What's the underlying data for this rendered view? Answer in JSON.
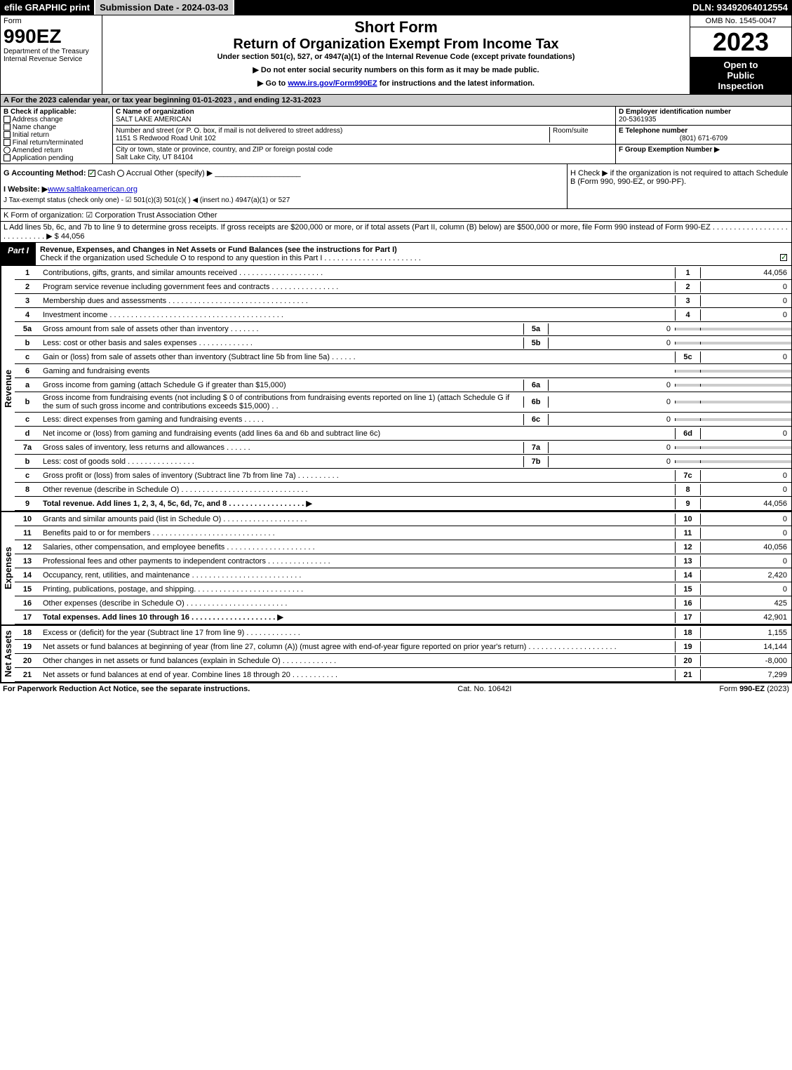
{
  "topbar": {
    "efile": "efile GRAPHIC print",
    "submission": "Submission Date - 2024-03-03",
    "dln": "DLN: 93492064012554"
  },
  "header": {
    "form_label": "Form",
    "form_num": "990EZ",
    "dept1": "Department of the Treasury",
    "dept2": "Internal Revenue Service",
    "title1": "Short Form",
    "title2": "Return of Organization Exempt From Income Tax",
    "subtitle": "Under section 501(c), 527, or 4947(a)(1) of the Internal Revenue Code (except private foundations)",
    "note1": "▶ Do not enter social security numbers on this form as it may be made public.",
    "note2_pre": "▶ Go to ",
    "note2_link": "www.irs.gov/Form990EZ",
    "note2_post": " for instructions and the latest information.",
    "omb": "OMB No. 1545-0047",
    "year": "2023",
    "open1": "Open to",
    "open2": "Public",
    "open3": "Inspection"
  },
  "section_a": "A  For the 2023 calendar year, or tax year beginning 01-01-2023  , and ending 12-31-2023",
  "col_b": {
    "title": "B  Check if applicable:",
    "opts": [
      "Address change",
      "Name change",
      "Initial return",
      "Final return/terminated",
      "Amended return",
      "Application pending"
    ]
  },
  "col_c": {
    "name_label": "C Name of organization",
    "name": "SALT LAKE AMERICAN",
    "addr_label": "Number and street (or P. O. box, if mail is not delivered to street address)",
    "room_label": "Room/suite",
    "addr": "1151 S Redwood Road Unit 102",
    "city_label": "City or town, state or province, country, and ZIP or foreign postal code",
    "city": "Salt Lake City, UT  84104"
  },
  "col_def": {
    "d_label": "D Employer identification number",
    "d_val": "20-5361935",
    "e_label": "E Telephone number",
    "e_val": "(801) 671-6709",
    "f_label": "F Group Exemption Number  ▶"
  },
  "g": {
    "label": "G Accounting Method:",
    "cash": "Cash",
    "accrual": "Accrual",
    "other": "Other (specify) ▶"
  },
  "h": "H  Check ▶      if the organization is not required to attach Schedule B (Form 990, 990-EZ, or 990-PF).",
  "i_label": "I Website: ▶",
  "i_val": "www.saltlakeamerican.org",
  "j": "J Tax-exempt status (check only one) -  ☑ 501(c)(3)   501(c)(  ) ◀ (insert no.)   4947(a)(1) or   527",
  "k": "K Form of organization:   ☑ Corporation    Trust    Association    Other",
  "l": "L Add lines 5b, 6c, and 7b to line 9 to determine gross receipts. If gross receipts are $200,000 or more, or if total assets (Part II, column (B) below) are $500,000 or more, file Form 990 instead of Form 990-EZ  . . . . . . . . . . . . . . . . . . . . . . . . . . . .  ▶ $ 44,056",
  "part1": {
    "tab": "Part I",
    "title": "Revenue, Expenses, and Changes in Net Assets or Fund Balances (see the instructions for Part I)",
    "check": "Check if the organization used Schedule O to respond to any question in this Part I . . . . . . . . . . . . . . . . . . . . . . ."
  },
  "revenue_label": "Revenue",
  "expenses_label": "Expenses",
  "netassets_label": "Net Assets",
  "lines": {
    "1": {
      "n": "1",
      "d": "Contributions, gifts, grants, and similar amounts received . . . . . . . . . . . . . . . . . . . .",
      "rn": "1",
      "rv": "44,056"
    },
    "2": {
      "n": "2",
      "d": "Program service revenue including government fees and contracts . . . . . . . . . . . . . . . .",
      "rn": "2",
      "rv": "0"
    },
    "3": {
      "n": "3",
      "d": "Membership dues and assessments . . . . . . . . . . . . . . . . . . . . . . . . . . . . . . . . .",
      "rn": "3",
      "rv": "0"
    },
    "4": {
      "n": "4",
      "d": "Investment income . . . . . . . . . . . . . . . . . . . . . . . . . . . . . . . . . . . . . . . . .",
      "rn": "4",
      "rv": "0"
    },
    "5a": {
      "n": "5a",
      "d": "Gross amount from sale of assets other than inventory  . . . . . . .",
      "in": "5a",
      "iv": "0"
    },
    "5b": {
      "n": "b",
      "d": "Less: cost or other basis and sales expenses . . . . . . . . . . . . .",
      "in": "5b",
      "iv": "0"
    },
    "5c": {
      "n": "c",
      "d": "Gain or (loss) from sale of assets other than inventory (Subtract line 5b from line 5a)  . . . . . .",
      "rn": "5c",
      "rv": "0"
    },
    "6": {
      "n": "6",
      "d": "Gaming and fundraising events"
    },
    "6a": {
      "n": "a",
      "d": "Gross income from gaming (attach Schedule G if greater than $15,000)",
      "in": "6a",
      "iv": "0"
    },
    "6b": {
      "n": "b",
      "d": "Gross income from fundraising events (not including $ 0            of contributions from fundraising events reported on line 1) (attach Schedule G if the sum of such gross income and contributions exceeds $15,000)    . .",
      "in": "6b",
      "iv": "0"
    },
    "6c": {
      "n": "c",
      "d": "Less: direct expenses from gaming and fundraising events  . . . . .",
      "in": "6c",
      "iv": "0"
    },
    "6d": {
      "n": "d",
      "d": "Net income or (loss) from gaming and fundraising events (add lines 6a and 6b and subtract line 6c)",
      "rn": "6d",
      "rv": "0"
    },
    "7a": {
      "n": "7a",
      "d": "Gross sales of inventory, less returns and allowances  . . . . . .",
      "in": "7a",
      "iv": "0"
    },
    "7b": {
      "n": "b",
      "d": "Less: cost of goods sold      . . . . . . . . . . . . . . . .",
      "in": "7b",
      "iv": "0"
    },
    "7c": {
      "n": "c",
      "d": "Gross profit or (loss) from sales of inventory (Subtract line 7b from line 7a)  . . . . . . . . . .",
      "rn": "7c",
      "rv": "0"
    },
    "8": {
      "n": "8",
      "d": "Other revenue (describe in Schedule O) . . . . . . . . . . . . . . . . . . . . . . . . . . . . . .",
      "rn": "8",
      "rv": "0"
    },
    "9": {
      "n": "9",
      "d": "Total revenue. Add lines 1, 2, 3, 4, 5c, 6d, 7c, and 8  . . . . . . . . . . . . . . . . . .  ▶",
      "rn": "9",
      "rv": "44,056",
      "bold": true
    },
    "10": {
      "n": "10",
      "d": "Grants and similar amounts paid (list in Schedule O) . . . . . . . . . . . . . . . . . . . .",
      "rn": "10",
      "rv": "0"
    },
    "11": {
      "n": "11",
      "d": "Benefits paid to or for members    . . . . . . . . . . . . . . . . . . . . . . . . . . . . .",
      "rn": "11",
      "rv": "0"
    },
    "12": {
      "n": "12",
      "d": "Salaries, other compensation, and employee benefits . . . . . . . . . . . . . . . . . . . . .",
      "rn": "12",
      "rv": "40,056"
    },
    "13": {
      "n": "13",
      "d": "Professional fees and other payments to independent contractors . . . . . . . . . . . . . . .",
      "rn": "13",
      "rv": "0"
    },
    "14": {
      "n": "14",
      "d": "Occupancy, rent, utilities, and maintenance . . . . . . . . . . . . . . . . . . . . . . . . . .",
      "rn": "14",
      "rv": "2,420"
    },
    "15": {
      "n": "15",
      "d": "Printing, publications, postage, and shipping. . . . . . . . . . . . . . . . . . . . . . . . . .",
      "rn": "15",
      "rv": "0"
    },
    "16": {
      "n": "16",
      "d": "Other expenses (describe in Schedule O)     . . . . . . . . . . . . . . . . . . . . . . . .",
      "rn": "16",
      "rv": "425"
    },
    "17": {
      "n": "17",
      "d": "Total expenses. Add lines 10 through 16    . . . . . . . . . . . . . . . . . . . .  ▶",
      "rn": "17",
      "rv": "42,901",
      "bold": true
    },
    "18": {
      "n": "18",
      "d": "Excess or (deficit) for the year (Subtract line 17 from line 9)      . . . . . . . . . . . . .",
      "rn": "18",
      "rv": "1,155"
    },
    "19": {
      "n": "19",
      "d": "Net assets or fund balances at beginning of year (from line 27, column (A)) (must agree with end-of-year figure reported on prior year's return) . . . . . . . . . . . . . . . . . . . . .",
      "rn": "19",
      "rv": "14,144"
    },
    "20": {
      "n": "20",
      "d": "Other changes in net assets or fund balances (explain in Schedule O) . . . . . . . . . . . . .",
      "rn": "20",
      "rv": "-8,000"
    },
    "21": {
      "n": "21",
      "d": "Net assets or fund balances at end of year. Combine lines 18 through 20 . . . . . . . . . . .",
      "rn": "21",
      "rv": "7,299"
    }
  },
  "footer": {
    "left": "For Paperwork Reduction Act Notice, see the separate instructions.",
    "mid": "Cat. No. 10642I",
    "right": "Form 990-EZ (2023)"
  }
}
